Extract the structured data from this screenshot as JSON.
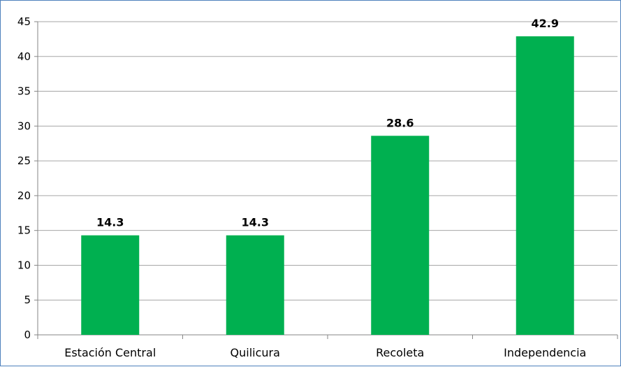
{
  "chart_data": {
    "type": "bar",
    "title": "",
    "xlabel": "",
    "ylabel": "",
    "categories": [
      "Estación Central",
      "Quilicura",
      "Recoleta",
      "Independencia"
    ],
    "values": [
      14.3,
      14.3,
      28.6,
      42.9
    ],
    "data_labels": [
      "14.3",
      "14.3",
      "28.6",
      "42.9"
    ],
    "ylim": [
      0,
      45
    ],
    "yticks": [
      0,
      5,
      10,
      15,
      20,
      25,
      30,
      35,
      40,
      45
    ],
    "grid": true,
    "legend": "none",
    "colors": {
      "bar": "#00b050",
      "grid": "#a6a6a6",
      "axis": "#868686",
      "frame": "#4f81bd"
    }
  }
}
